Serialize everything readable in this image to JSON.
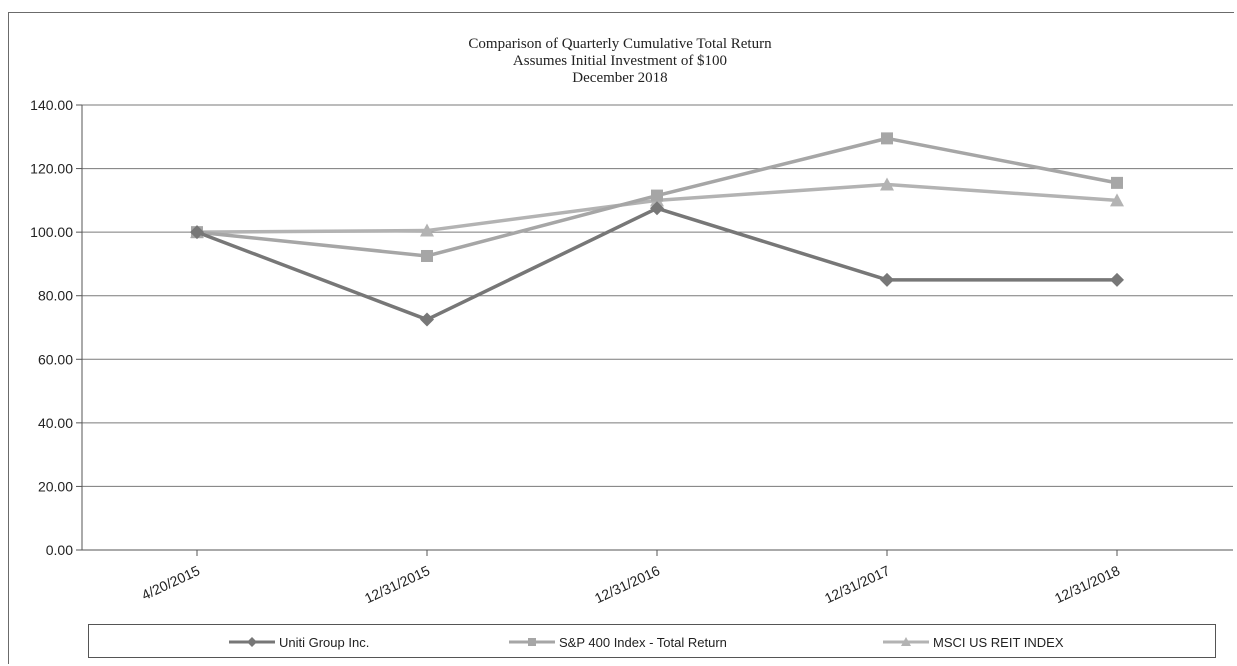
{
  "chart_data": {
    "type": "line",
    "title": "Comparison of Quarterly Cumulative Total Return",
    "subtitle_lines": [
      "Assumes Initial Investment of $100",
      "December 2018"
    ],
    "categories": [
      "4/20/2015",
      "12/31/2015",
      "12/31/2016",
      "12/31/2017",
      "12/31/2018"
    ],
    "ylim": [
      0,
      140
    ],
    "yticks": [
      "0.00",
      "20.00",
      "40.00",
      "60.00",
      "80.00",
      "100.00",
      "120.00",
      "140.00"
    ],
    "ytick_values": [
      0,
      20,
      40,
      60,
      80,
      100,
      120,
      140
    ],
    "grid": true,
    "legend_position": "bottom",
    "series": [
      {
        "name": "Uniti Group Inc.",
        "marker": "diamond",
        "color": "#777777",
        "values": [
          100,
          72.5,
          107.5,
          85,
          85
        ]
      },
      {
        "name": "S&P 400 Index - Total Return",
        "marker": "square",
        "color": "#a6a6a6",
        "values": [
          100,
          92.5,
          111.5,
          129.5,
          115.5
        ]
      },
      {
        "name": "MSCI US REIT INDEX",
        "marker": "triangle",
        "color": "#b3b3b3",
        "values": [
          100,
          100.5,
          110,
          115,
          110
        ]
      }
    ]
  }
}
